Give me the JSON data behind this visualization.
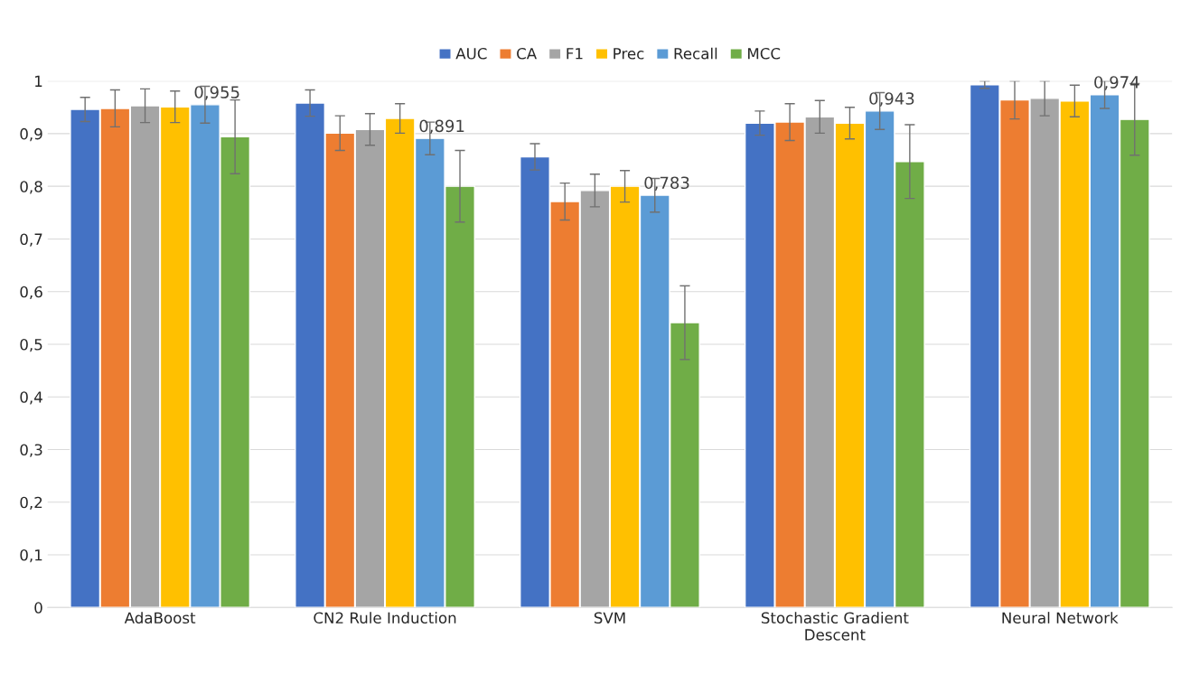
{
  "chart_data": {
    "type": "bar",
    "categories": [
      "AdaBoost",
      "CN2 Rule Induction",
      "SVM",
      "Stochastic Gradient\nDescent",
      "Neural Network"
    ],
    "series": [
      {
        "name": "AUC",
        "color": "#4472c4",
        "values": [
          0.946,
          0.958,
          0.856,
          0.92,
          0.993
        ],
        "errors": [
          0.023,
          0.025,
          0.025,
          0.023,
          0.007
        ]
      },
      {
        "name": "CA",
        "color": "#ed7d31",
        "values": [
          0.948,
          0.901,
          0.771,
          0.922,
          0.964
        ],
        "errors": [
          0.035,
          0.033,
          0.035,
          0.035,
          0.036
        ]
      },
      {
        "name": "F1",
        "color": "#a5a5a5",
        "values": [
          0.953,
          0.908,
          0.792,
          0.932,
          0.967
        ],
        "errors": [
          0.032,
          0.03,
          0.031,
          0.031,
          0.033
        ]
      },
      {
        "name": "Prec",
        "color": "#ffc000",
        "values": [
          0.951,
          0.929,
          0.8,
          0.92,
          0.962
        ],
        "errors": [
          0.03,
          0.028,
          0.03,
          0.03,
          0.03
        ]
      },
      {
        "name": "Recall",
        "color": "#5b9bd5",
        "values": [
          0.955,
          0.891,
          0.783,
          0.943,
          0.974
        ],
        "errors": [
          0.035,
          0.031,
          0.032,
          0.035,
          0.026
        ],
        "value_labels": [
          "0,955",
          "0,891",
          "0,783",
          "0,943",
          "0,974"
        ]
      },
      {
        "name": "MCC",
        "color": "#70ad47",
        "values": [
          0.894,
          0.8,
          0.541,
          0.847,
          0.927
        ],
        "errors": [
          0.07,
          0.068,
          0.07,
          0.07,
          0.068
        ]
      }
    ],
    "ylim": [
      0,
      1
    ],
    "yticks": [
      0,
      {
        "value": 0.1,
        "label": "0,1"
      },
      {
        "value": 0.2,
        "label": "0,2"
      },
      {
        "value": 0.3,
        "label": "0,3"
      },
      {
        "value": 0.4,
        "label": "0,4"
      },
      {
        "value": 0.5,
        "label": "0,5"
      },
      {
        "value": 0.6,
        "label": "0,6"
      },
      {
        "value": 0.7,
        "label": "0,7"
      },
      {
        "value": 0.8,
        "label": "0,8"
      },
      {
        "value": 0.9,
        "label": "0,9"
      },
      1
    ],
    "grid": "y",
    "legend": "top"
  }
}
